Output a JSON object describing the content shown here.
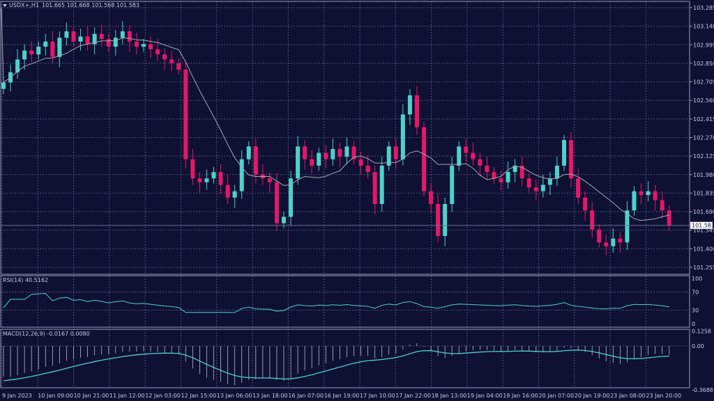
{
  "header": {
    "symbol": "USDX+,H1",
    "ohlc": "101.665 101.668 101.568 101.583"
  },
  "rsi": {
    "label": "RSI(14) 40.5162",
    "ticks": [
      "100",
      "70",
      "30",
      "0"
    ],
    "levels": [
      100,
      70,
      30,
      0
    ]
  },
  "macd": {
    "label": "MACD(12,26,9) -0.0167 0.0080",
    "ticks": [
      "0.1258",
      "0.00",
      "-0.3688"
    ],
    "levels": [
      0.1258,
      0,
      -0.3688
    ]
  },
  "colors": {
    "background": "#0f1133",
    "bull": "#4fd1c9",
    "bear": "#e5176b",
    "grid": "#4c5378",
    "ma": "#a8a8b8",
    "rsi_line": "#4fd1c9",
    "macd_line": "#4fd1c9",
    "macd_hist": "#b8bccc"
  },
  "chart_data": {
    "type": "candlestick",
    "price_axis": {
      "ticks": [
        "103.285",
        "103.140",
        "102.995",
        "102.850",
        "102.705",
        "102.560",
        "102.415",
        "102.270",
        "102.125",
        "101.980",
        "101.835",
        "101.690",
        "101.545",
        "101.400",
        "101.255"
      ],
      "ylim": [
        101.255,
        103.285
      ]
    },
    "current_price": "101.583",
    "x_ticks": [
      "9 Jan 2023",
      "10 Jan 09:00",
      "10 Jan 21:00",
      "11 Jan 12:00",
      "12 Jan 03:00",
      "12 Jan 15:00",
      "13 Jan 06:00",
      "13 Jan 18:00",
      "16 Jan 07:00",
      "16 Jan 19:00",
      "17 Jan 10:00",
      "17 Jan 22:00",
      "18 Jan 13:00",
      "19 Jan 04:00",
      "19 Jan 16:00",
      "20 Jan 07:00",
      "20 Jan 19:00",
      "23 Jan 08:00",
      "23 Jan 20:00"
    ],
    "close": [
      102.7,
      102.78,
      102.88,
      102.95,
      102.92,
      102.98,
      103.02,
      102.9,
      103.05,
      103.1,
      103.02,
      103.06,
      103.0,
      103.08,
      103.04,
      102.98,
      103.05,
      103.1,
      103.02,
      102.98,
      103.0,
      102.96,
      102.92,
      102.88,
      102.85,
      102.8,
      102.1,
      101.95,
      101.92,
      101.95,
      102.0,
      101.9,
      101.8,
      101.85,
      102.1,
      102.2,
      101.98,
      101.95,
      101.92,
      101.6,
      101.65,
      101.95,
      102.2,
      102.1,
      102.05,
      102.15,
      102.1,
      102.18,
      102.12,
      102.2,
      102.1,
      102.05,
      102.0,
      101.75,
      102.05,
      102.2,
      102.1,
      102.45,
      102.6,
      102.35,
      101.85,
      101.75,
      101.5,
      101.75,
      102.05,
      102.2,
      102.15,
      102.1,
      102.05,
      102.0,
      101.95,
      101.92,
      102.0,
      102.05,
      101.95,
      101.88,
      101.85,
      101.9,
      101.95,
      102.05,
      102.25,
      101.95,
      101.8,
      101.7,
      101.55,
      101.45,
      101.42,
      101.48,
      101.45,
      101.7,
      101.85,
      101.82,
      101.85,
      101.78,
      101.7,
      101.583
    ]
  }
}
